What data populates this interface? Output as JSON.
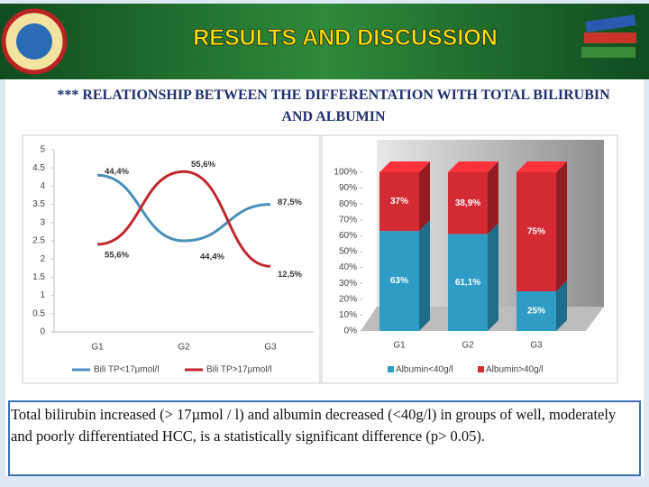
{
  "header": {
    "title": "RESULTS AND DISCUSSION"
  },
  "subtitle": "*** RELATIONSHIP BETWEEN THE DIFFERENTATION  WITH TOTAL BILIRUBIN AND ALBUMIN",
  "chart_data": [
    {
      "type": "line",
      "categories": [
        "G1",
        "G2",
        "G3"
      ],
      "ylim": [
        0,
        5
      ],
      "yticks": [
        0,
        0.5,
        1,
        1.5,
        2,
        2.5,
        3,
        3.5,
        4,
        4.5,
        5
      ],
      "legend": "bottom",
      "series": [
        {
          "name": "Bili TP<17µmol/l",
          "color": "#4a90b8",
          "values": [
            4.3,
            2.5,
            3.5
          ],
          "labels": [
            "44,4%",
            "44,4%",
            "87,5%"
          ]
        },
        {
          "name": "Bili TP>17µmol/l",
          "color": "#c0282d",
          "values": [
            2.4,
            4.4,
            1.8
          ],
          "labels": [
            "55,6%",
            "55,6%",
            "12,5%"
          ]
        }
      ]
    },
    {
      "type": "stacked_bar",
      "categories": [
        "G1",
        "G2",
        "G3"
      ],
      "ylim": [
        0,
        100
      ],
      "yticks": [
        {
          "value": 0,
          "label": "0%"
        },
        {
          "value": 10,
          "label": "10%"
        },
        {
          "value": 20,
          "label": "20%"
        },
        {
          "value": 30,
          "label": "30%"
        },
        {
          "value": 40,
          "label": "40%"
        },
        {
          "value": 50,
          "label": "50%"
        },
        {
          "value": 60,
          "label": "60%"
        },
        {
          "value": 70,
          "label": "70%"
        },
        {
          "value": 80,
          "label": "80%"
        },
        {
          "value": 90,
          "label": "90%"
        },
        {
          "value": 100,
          "label": "100%"
        }
      ],
      "legend": "bottom",
      "series": [
        {
          "name": "Albumin<40g/l",
          "color": "#2e9cc4",
          "values": [
            63,
            61.1,
            25
          ],
          "value_labels": [
            "63%",
            "61,1%",
            "25%"
          ]
        },
        {
          "name": "Albumin>40g/l",
          "color": "#d42a33",
          "values": [
            37,
            38.9,
            75
          ],
          "value_labels": [
            "37%",
            "38,9%",
            "75%"
          ]
        }
      ]
    }
  ],
  "caption": "Total bilirubin increased (> 17µmol / l) and albumin decreased (<40g/l) in groups of well, moderately and poorly differentiated HCC, is a statistically significant difference (p> 0.05)."
}
